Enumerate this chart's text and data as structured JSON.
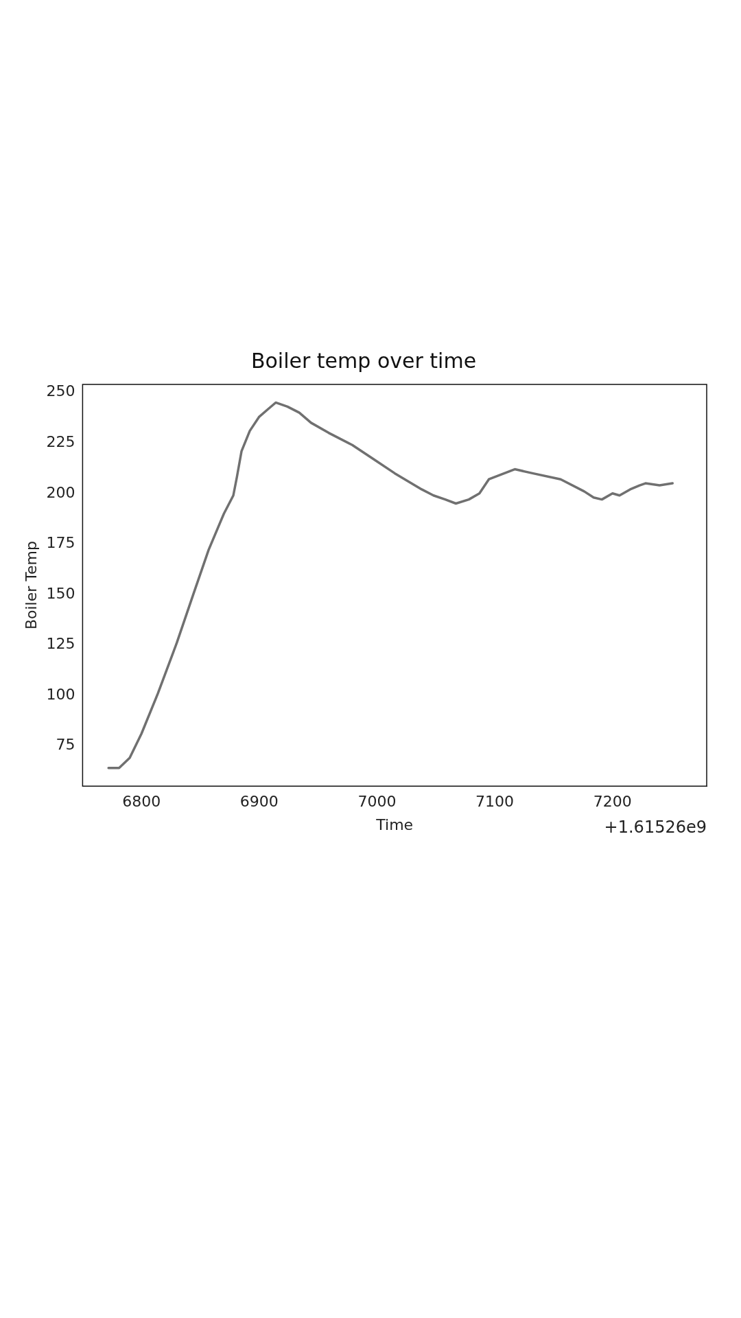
{
  "chart_data": {
    "type": "line",
    "title": "Boiler temp over time",
    "xlabel": "Time",
    "ylabel": "Boiler Temp",
    "annotations": [
      "+1.61526e9"
    ],
    "x": [
      6772,
      6781,
      6790,
      6800,
      6814,
      6830,
      6844,
      6857,
      6870,
      6878,
      6881,
      6885,
      6892,
      6900,
      6908,
      6914,
      6924,
      6934,
      6944,
      6959,
      6979,
      6997,
      7015,
      7038,
      7048,
      7058,
      7067,
      7078,
      7087,
      7095,
      7117,
      7132,
      7156,
      7176,
      7184,
      7191,
      7200,
      7206,
      7215,
      7223,
      7228,
      7240,
      7251
    ],
    "series": [
      {
        "color": "#707070",
        "values": [
          64,
          64,
          69,
          81,
          101,
          126,
          150,
          172,
          190,
          199,
          208,
          221,
          231,
          238,
          242,
          245,
          243,
          240,
          235,
          230,
          224,
          217,
          210,
          202,
          199,
          197,
          195,
          197,
          200,
          207,
          212,
          210,
          207,
          201,
          198,
          197,
          200,
          199,
          202,
          204,
          205,
          204,
          205
        ]
      }
    ],
    "xlim": [
      6750,
      7280
    ],
    "xticks": [
      6800,
      6900,
      7000,
      7100,
      7200
    ],
    "ylim": [
      55,
      254
    ],
    "yticks": [
      75,
      100,
      125,
      150,
      175,
      200,
      225,
      250
    ],
    "grid": false,
    "legend": false,
    "marker": "none",
    "line_style": "solid"
  }
}
